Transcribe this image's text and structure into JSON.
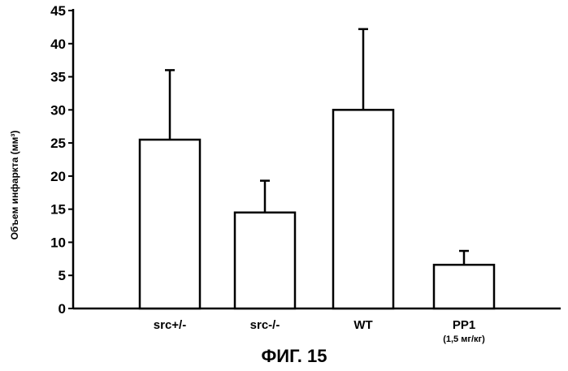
{
  "chart_data": {
    "type": "bar",
    "categories": [
      "src+/-",
      "src-/-",
      "WT",
      "PP1"
    ],
    "category_sublabels": [
      "",
      "",
      "",
      "(1,5 мг/кг)"
    ],
    "values": [
      25.5,
      14.5,
      30.0,
      6.6
    ],
    "error_upper": [
      36.0,
      19.3,
      42.2,
      8.7
    ],
    "ylabel": "Объем инфаркта (мм³)",
    "ylim": [
      0,
      45
    ],
    "yticks": [
      0,
      5,
      10,
      15,
      20,
      25,
      30,
      35,
      40,
      45
    ],
    "caption": "ФИГ. 15",
    "colors": {
      "bar_fill": "#ffffff",
      "stroke": "#000000"
    }
  }
}
